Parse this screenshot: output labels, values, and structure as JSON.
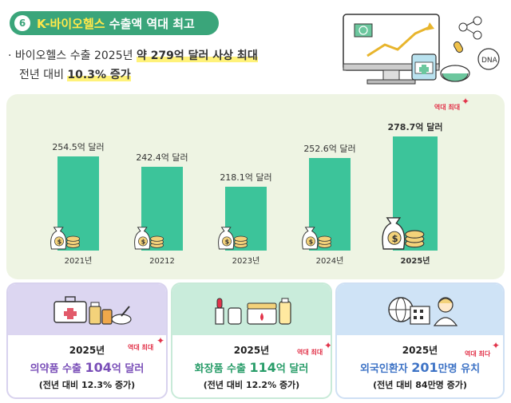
{
  "header": {
    "number": "6",
    "title_highlight": "K-바이오헬스",
    "title_rest": " 수출액 역대 최고"
  },
  "summary": {
    "bullet": "·",
    "line1_plain": "바이오헬스 수출 2025년 ",
    "line1_bold": "약 279억 달러 사상 최대",
    "line2_plain": "전년 대비 ",
    "line2_bold": "10.3% 증가"
  },
  "chart_data": {
    "type": "bar",
    "categories": [
      "2021년",
      "20212",
      "2023년",
      "2024년",
      "2025년"
    ],
    "values": [
      254.5,
      242.4,
      218.1,
      252.6,
      278.7
    ],
    "value_labels": [
      "254.5억 달러",
      "242.4억 달러",
      "218.1억 달러",
      "252.6억 달러",
      "278.7억 달러"
    ],
    "highlight_index": 4,
    "highlight_badge": "역대 최대",
    "bar_color": "#3cc49a",
    "highlight_color": "#e2334a"
  },
  "cards": [
    {
      "year": "2025년",
      "main_pre": "의약품 수출 ",
      "main_big": "104",
      "main_post": "억 달러",
      "sub": "(전년 대비 12.3% 증가)",
      "badge": "역대 최대"
    },
    {
      "year": "2025년",
      "main_pre": "화장품 수출 ",
      "main_big": "114",
      "main_post": "억 달러",
      "sub": "(전년 대비 12.2% 증가)",
      "badge": "역대 최대"
    },
    {
      "year": "2025년",
      "main_pre": "외국인환자 ",
      "main_big": "201",
      "main_post": "만명 유치",
      "sub": "(전년 대비 84만명 증가)",
      "badge": "역대 최다"
    }
  ],
  "icons": {
    "money_bag": "money-bag-icon",
    "pharma": "medicine-kit-icon",
    "cosmetics": "cosmetics-icon",
    "patient": "patient-icon"
  }
}
